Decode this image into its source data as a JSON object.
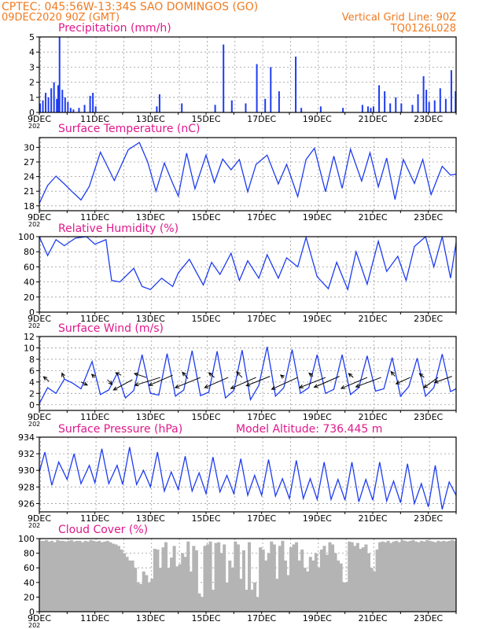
{
  "header": {
    "line1": "CPTEC:   045:56W-13:34S  SAO DOMINGOS (GO)",
    "line2": "09DEC2020 90Z (GMT)",
    "grid_note": "Vertical Grid Line: 90Z",
    "code": "TQ0126L028"
  },
  "colors": {
    "header": "#f07a20",
    "title": "#e0198c",
    "series": "#1e3cf0",
    "cloud_fill": "#b4b4b4",
    "grid": "#9a9a9a"
  },
  "x_axis": {
    "start_day": 9,
    "end_day": 24,
    "tick_labels": [
      "9DEC",
      "11DEC",
      "13DEC",
      "15DEC",
      "17DEC",
      "19DEC",
      "21DEC",
      "23DEC"
    ],
    "tick_days": [
      9,
      11,
      13,
      15,
      17,
      19,
      21,
      23
    ],
    "year_fragment": "202"
  },
  "model_altitude": "Model Altitude: 736.445 m",
  "chart_data": [
    {
      "type": "bar",
      "title": "Precipitation (mm/h)",
      "ylim": [
        0,
        5
      ],
      "yticks": [
        "0",
        "1",
        "2",
        "3",
        "4",
        "5"
      ],
      "day": [
        9.0,
        9.1,
        9.2,
        9.3,
        9.4,
        9.5,
        9.6,
        9.65,
        9.7,
        9.8,
        9.9,
        10.0,
        10.1,
        10.2,
        10.4,
        10.6,
        10.8,
        10.9,
        11.0,
        13.2,
        13.3,
        14.1,
        15.3,
        15.6,
        15.9,
        16.4,
        16.8,
        17.1,
        17.3,
        17.6,
        18.2,
        18.4,
        19.1,
        19.9,
        20.6,
        20.8,
        20.9,
        21.0,
        21.2,
        21.4,
        21.6,
        21.8,
        22.0,
        22.4,
        22.6,
        22.8,
        22.9,
        23.0,
        23.2,
        23.4,
        23.6,
        23.8,
        23.95
      ],
      "values": [
        0.6,
        0.8,
        1.3,
        1.0,
        1.6,
        2.0,
        0.9,
        1.8,
        5.0,
        1.5,
        1.0,
        0.7,
        0.3,
        0.2,
        0.3,
        0.5,
        1.1,
        1.3,
        0.4,
        0.4,
        1.2,
        0.6,
        0.5,
        4.5,
        0.8,
        0.6,
        3.2,
        0.9,
        3.0,
        1.4,
        3.7,
        0.3,
        0.4,
        0.3,
        0.5,
        0.4,
        0.3,
        0.4,
        1.8,
        1.4,
        0.6,
        1.0,
        0.6,
        0.5,
        1.2,
        2.4,
        1.5,
        0.7,
        0.8,
        1.6,
        0.9,
        2.8,
        1.4
      ]
    },
    {
      "type": "line",
      "title": "Surface Temperature (nC)",
      "ylim": [
        17,
        32
      ],
      "yticks": [
        "18",
        "21",
        "24",
        "27",
        "30"
      ],
      "ytick_values": [
        18,
        21,
        24,
        27,
        30
      ],
      "x": [
        9.0,
        9.3,
        9.6,
        9.9,
        10.2,
        10.5,
        10.8,
        11.2,
        11.7,
        12.2,
        12.6,
        12.9,
        13.2,
        13.5,
        13.8,
        14.0,
        14.3,
        14.6,
        15.0,
        15.3,
        15.6,
        15.9,
        16.2,
        16.5,
        16.8,
        17.2,
        17.6,
        17.9,
        18.3,
        18.6,
        18.9,
        19.3,
        19.6,
        19.9,
        20.2,
        20.6,
        20.9,
        21.2,
        21.5,
        21.8,
        22.1,
        22.5,
        22.8,
        23.1,
        23.5,
        23.8,
        24.0
      ],
      "values": [
        18.5,
        22.2,
        24.1,
        22.5,
        20.8,
        19.2,
        22.0,
        29.0,
        23.2,
        29.5,
        31.0,
        27.0,
        21.0,
        26.8,
        22.6,
        20.0,
        28.8,
        21.5,
        28.4,
        22.8,
        27.6,
        25.4,
        27.5,
        20.9,
        26.5,
        28.4,
        22.5,
        26.5,
        19.9,
        27.5,
        29.8,
        20.9,
        28.2,
        21.6,
        29.6,
        23.1,
        28.9,
        21.9,
        27.8,
        19.3,
        27.5,
        22.6,
        27.5,
        20.3,
        26.1,
        24.3,
        24.5
      ]
    },
    {
      "type": "line",
      "title": "Relative Humidity (%)",
      "ylim": [
        0,
        100
      ],
      "yticks": [
        "0",
        "20",
        "40",
        "60",
        "80",
        "100"
      ],
      "ytick_values": [
        0,
        20,
        40,
        60,
        80,
        100
      ],
      "x": [
        9.0,
        9.3,
        9.6,
        9.9,
        10.3,
        10.7,
        11.0,
        11.4,
        11.6,
        11.9,
        12.4,
        12.7,
        13.0,
        13.4,
        13.8,
        14.0,
        14.4,
        14.9,
        15.2,
        15.5,
        15.9,
        16.2,
        16.5,
        16.9,
        17.2,
        17.6,
        17.9,
        18.3,
        18.6,
        19.0,
        19.4,
        19.7,
        20.1,
        20.4,
        20.8,
        21.2,
        21.5,
        21.9,
        22.2,
        22.5,
        22.9,
        23.2,
        23.5,
        23.8,
        24.0
      ],
      "values": [
        100,
        75,
        96,
        88,
        98,
        100,
        90,
        96,
        42,
        40,
        58,
        34,
        30,
        45,
        34,
        52,
        70,
        36,
        66,
        50,
        78,
        42,
        68,
        45,
        76,
        45,
        72,
        60,
        99,
        47,
        31,
        66,
        30,
        80,
        37,
        94,
        54,
        74,
        42,
        87,
        100,
        60,
        100,
        45,
        92
      ]
    },
    {
      "type": "line",
      "title": "Surface Wind (m/s)",
      "ylim": [
        -1,
        12
      ],
      "yticks": [
        "0",
        "2",
        "4",
        "6",
        "8",
        "10",
        "12"
      ],
      "ytick_values": [
        0,
        2,
        4,
        6,
        8,
        10,
        12
      ],
      "x": [
        9.0,
        9.3,
        9.6,
        9.9,
        10.2,
        10.5,
        10.9,
        11.2,
        11.5,
        11.8,
        12.1,
        12.4,
        12.7,
        13.0,
        13.3,
        13.6,
        13.9,
        14.2,
        14.5,
        14.8,
        15.1,
        15.4,
        15.7,
        16.0,
        16.3,
        16.6,
        16.9,
        17.2,
        17.5,
        17.8,
        18.1,
        18.4,
        18.7,
        19.0,
        19.3,
        19.6,
        19.9,
        20.2,
        20.5,
        20.8,
        21.1,
        21.4,
        21.7,
        22.0,
        22.3,
        22.6,
        22.9,
        23.2,
        23.5,
        23.8,
        24.0
      ],
      "values": [
        0.2,
        3.0,
        2.0,
        4.5,
        3.8,
        2.8,
        7.6,
        1.8,
        2.6,
        5.5,
        1.2,
        2.5,
        8.8,
        2.0,
        1.7,
        9.0,
        1.5,
        2.6,
        9.5,
        1.6,
        2.2,
        9.4,
        1.2,
        2.5,
        9.6,
        0.9,
        3.4,
        10.2,
        1.5,
        3.0,
        9.7,
        2.0,
        3.0,
        8.8,
        2.0,
        2.7,
        8.8,
        1.8,
        3.0,
        8.6,
        2.4,
        2.8,
        8.3,
        1.5,
        3.2,
        8.2,
        1.5,
        3.0,
        8.9,
        2.3,
        2.8
      ],
      "arrows": [
        {
          "day": 9.35,
          "value": 4.1,
          "dx": -7,
          "dy": -6
        },
        {
          "day": 9.9,
          "value": 4.6,
          "dx": -3,
          "dy": -7
        },
        {
          "day": 10.5,
          "value": 4.0,
          "dx": 8,
          "dy": 4
        },
        {
          "day": 11.0,
          "value": 4.8,
          "dx": -4,
          "dy": -4
        },
        {
          "day": 11.45,
          "value": 4.4,
          "dx": 6,
          "dy": 6
        },
        {
          "day": 11.95,
          "value": 5.2,
          "dx": -7,
          "dy": -3
        },
        {
          "day": 12.35,
          "value": 4.4,
          "dx": -24,
          "dy": 13
        },
        {
          "day": 12.85,
          "value": 4.8,
          "dx": -15,
          "dy": -5
        },
        {
          "day": 13.35,
          "value": 4.8,
          "dx": -32,
          "dy": 10
        },
        {
          "day": 13.8,
          "value": 5.2,
          "dx": -30,
          "dy": 13
        },
        {
          "day": 14.35,
          "value": 4.6,
          "dx": -7,
          "dy": -8
        },
        {
          "day": 14.8,
          "value": 4.8,
          "dx": -32,
          "dy": 13
        },
        {
          "day": 15.3,
          "value": 4.8,
          "dx": -7,
          "dy": -6
        },
        {
          "day": 15.8,
          "value": 4.8,
          "dx": -30,
          "dy": 13
        },
        {
          "day": 16.3,
          "value": 4.8,
          "dx": -7,
          "dy": -7
        },
        {
          "day": 16.8,
          "value": 4.8,
          "dx": -32,
          "dy": 14
        },
        {
          "day": 17.3,
          "value": 5.0,
          "dx": -30,
          "dy": 12
        },
        {
          "day": 17.8,
          "value": 4.8,
          "dx": -4,
          "dy": -3
        },
        {
          "day": 18.3,
          "value": 4.8,
          "dx": -33,
          "dy": 15
        },
        {
          "day": 18.85,
          "value": 5.0,
          "dx": -5,
          "dy": -4
        },
        {
          "day": 19.3,
          "value": 4.8,
          "dx": -33,
          "dy": 13
        },
        {
          "day": 19.8,
          "value": 5.0,
          "dx": -32,
          "dy": 14
        },
        {
          "day": 20.3,
          "value": 4.8,
          "dx": -6,
          "dy": -5
        },
        {
          "day": 20.8,
          "value": 4.8,
          "dx": -33,
          "dy": 14
        },
        {
          "day": 21.3,
          "value": 4.8,
          "dx": -32,
          "dy": 12
        },
        {
          "day": 21.8,
          "value": 5.0,
          "dx": -5,
          "dy": -6
        },
        {
          "day": 22.35,
          "value": 4.8,
          "dx": -18,
          "dy": 8
        },
        {
          "day": 22.85,
          "value": 4.8,
          "dx": -6,
          "dy": -5
        },
        {
          "day": 23.35,
          "value": 4.8,
          "dx": -18,
          "dy": 13
        },
        {
          "day": 23.85,
          "value": 5.0,
          "dx": -22,
          "dy": 8
        }
      ]
    },
    {
      "type": "line",
      "title": "Surface Pressure (hPa)",
      "ylim": [
        925,
        934
      ],
      "yticks": [
        "926",
        "928",
        "930",
        "932",
        "934"
      ],
      "ytick_values": [
        926,
        928,
        930,
        932,
        934
      ],
      "x": [
        9.0,
        9.2,
        9.45,
        9.7,
        10.0,
        10.25,
        10.5,
        10.8,
        11.0,
        11.25,
        11.5,
        11.8,
        12.0,
        12.25,
        12.5,
        12.75,
        13.0,
        13.25,
        13.5,
        13.75,
        14.0,
        14.25,
        14.5,
        14.75,
        15.0,
        15.25,
        15.5,
        15.75,
        16.0,
        16.25,
        16.5,
        16.75,
        17.0,
        17.25,
        17.5,
        17.75,
        18.0,
        18.25,
        18.5,
        18.75,
        19.0,
        19.25,
        19.5,
        19.75,
        20.0,
        20.25,
        20.5,
        20.75,
        21.0,
        21.25,
        21.5,
        21.75,
        22.0,
        22.25,
        22.5,
        22.75,
        23.0,
        23.25,
        23.5,
        23.75,
        24.0
      ],
      "values": [
        929.8,
        932.2,
        928.2,
        931.0,
        928.9,
        932.0,
        928.4,
        930.6,
        928.5,
        932.6,
        928.4,
        930.6,
        928.3,
        932.8,
        928.3,
        930.0,
        928.0,
        932.2,
        927.5,
        929.8,
        927.7,
        931.7,
        927.5,
        929.7,
        927.2,
        931.6,
        927.4,
        929.4,
        927.2,
        931.4,
        927.0,
        929.4,
        927.0,
        931.3,
        926.9,
        929.0,
        926.6,
        931.2,
        926.6,
        929.0,
        926.5,
        931.0,
        926.5,
        928.9,
        926.4,
        931.0,
        926.2,
        928.9,
        926.4,
        931.0,
        926.3,
        928.7,
        926.1,
        930.8,
        926.0,
        928.4,
        925.6,
        930.6,
        925.3,
        928.6,
        927.0
      ]
    },
    {
      "type": "bar",
      "title": "Cloud Cover (%)",
      "ylim": [
        0,
        100
      ],
      "yticks": [
        "0",
        "20",
        "40",
        "60",
        "80",
        "100"
      ],
      "bar_day": [
        9.0,
        9.1,
        9.2,
        9.3,
        9.4,
        9.5,
        9.6,
        9.7,
        9.8,
        9.9,
        10.0,
        10.1,
        10.2,
        10.3,
        10.4,
        10.5,
        10.6,
        10.7,
        10.8,
        10.9,
        11.0,
        11.1,
        11.2,
        11.3,
        11.4,
        11.5,
        11.6,
        11.7,
        11.8,
        11.9,
        12.0,
        12.1,
        12.2,
        12.3,
        12.4,
        12.5,
        12.6,
        12.7,
        12.8,
        12.9,
        13.0,
        13.1,
        13.2,
        13.3,
        13.4,
        13.5,
        13.6,
        13.7,
        13.8,
        13.9,
        14.0,
        14.1,
        14.2,
        14.3,
        14.4,
        14.5,
        14.6,
        14.7,
        14.8,
        14.9,
        15.0,
        15.1,
        15.2,
        15.3,
        15.4,
        15.5,
        15.6,
        15.7,
        15.8,
        15.9,
        16.0,
        16.1,
        16.2,
        16.3,
        16.4,
        16.5,
        16.6,
        16.7,
        16.8,
        16.9,
        17.0,
        17.1,
        17.2,
        17.3,
        17.4,
        17.5,
        17.6,
        17.7,
        17.8,
        17.9,
        18.0,
        18.1,
        18.2,
        18.3,
        18.4,
        18.5,
        18.6,
        18.7,
        18.8,
        18.9,
        19.0,
        19.1,
        19.2,
        19.3,
        19.4,
        19.5,
        19.6,
        19.7,
        19.8,
        19.9,
        20.0,
        20.1,
        20.2,
        20.3,
        20.4,
        20.5,
        20.6,
        20.7,
        20.8,
        20.9,
        21.0,
        21.1,
        21.2,
        21.3,
        21.4,
        21.5,
        21.6,
        21.7,
        21.8,
        21.9,
        22.0,
        22.1,
        22.2,
        22.3,
        22.4,
        22.5,
        22.6,
        22.7,
        22.8,
        22.9,
        23.0,
        23.1,
        23.2,
        23.3,
        23.4,
        23.5,
        23.6,
        23.7,
        23.8,
        23.9
      ],
      "values": [
        97,
        97,
        98,
        96,
        97,
        95,
        98,
        97,
        97,
        96,
        97,
        98,
        96,
        97,
        97,
        95,
        97,
        96,
        98,
        97,
        96,
        97,
        95,
        96,
        97,
        95,
        93,
        92,
        90,
        85,
        80,
        75,
        70,
        70,
        60,
        40,
        38,
        55,
        50,
        40,
        45,
        86,
        85,
        60,
        88,
        95,
        60,
        74,
        90,
        62,
        65,
        80,
        75,
        96,
        55,
        90,
        84,
        25,
        20,
        90,
        92,
        96,
        30,
        94,
        95,
        80,
        92,
        40,
        70,
        60,
        96,
        92,
        45,
        84,
        30,
        95,
        30,
        40,
        20,
        88,
        85,
        70,
        80,
        96,
        92,
        45,
        90,
        97,
        70,
        50,
        88,
        92,
        95,
        70,
        85,
        60,
        55,
        75,
        70,
        80,
        60,
        85,
        90,
        78,
        95,
        92,
        80,
        70,
        66,
        40,
        40,
        96,
        95,
        90,
        94,
        86,
        88,
        92,
        80,
        60,
        55,
        85,
        95,
        96,
        95,
        97,
        94,
        96,
        97,
        95,
        98,
        97,
        96,
        97,
        98,
        96,
        95,
        97,
        96,
        98,
        97,
        96,
        95,
        97,
        96,
        97,
        96,
        97,
        98,
        97
      ]
    }
  ]
}
